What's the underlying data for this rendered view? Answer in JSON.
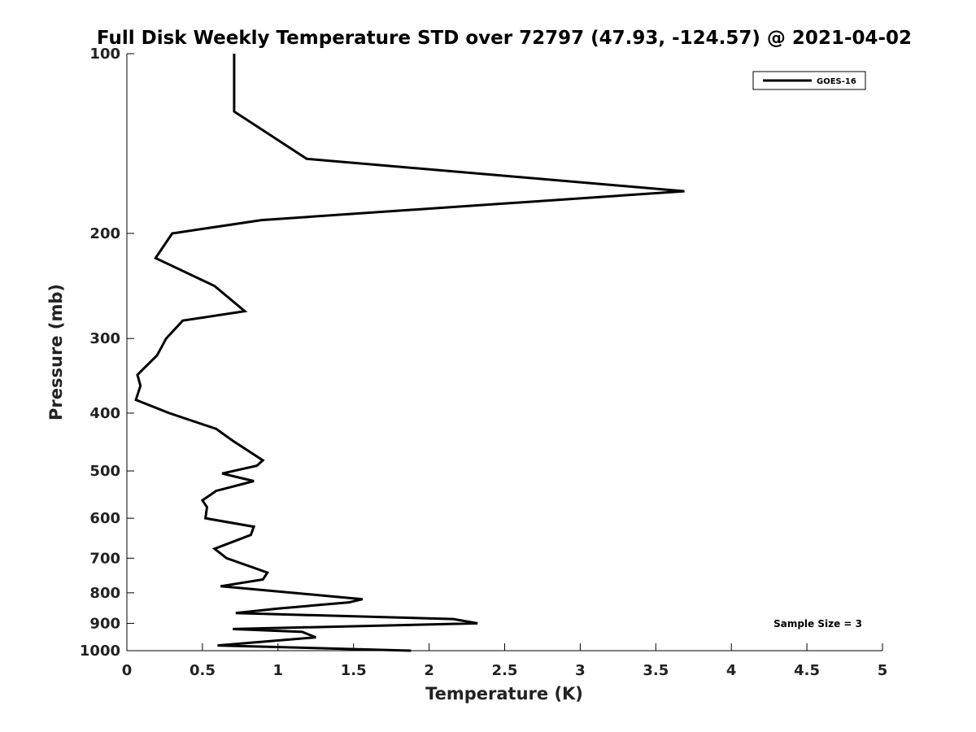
{
  "chart_data": {
    "type": "line",
    "title": "Full Disk Weekly Temperature STD over 72797 (47.93, -124.57) @ 2021-04-02",
    "xlabel": "Temperature (K)",
    "ylabel": "Pressure (mb)",
    "xlim": [
      0,
      5
    ],
    "ylim": [
      100,
      1000
    ],
    "y_scale": "log",
    "y_reversed": true,
    "x_ticks": [
      "0",
      "0.5",
      "1",
      "1.5",
      "2",
      "2.5",
      "3",
      "3.5",
      "4",
      "4.5",
      "5"
    ],
    "y_ticks": [
      "100",
      "200",
      "300",
      "400",
      "500",
      "600",
      "700",
      "800",
      "900",
      "1000"
    ],
    "grid": false,
    "legend_position": "top-right",
    "annotation": "Sample Size = 3",
    "series": [
      {
        "name": "GOES-16",
        "color": "#000000",
        "x": [
          0.71,
          0.71,
          1.19,
          3.69,
          0.89,
          0.3,
          0.19,
          0.58,
          0.78,
          0.37,
          0.26,
          0.2,
          0.07,
          0.09,
          0.06,
          0.28,
          0.59,
          0.7,
          0.9,
          0.86,
          0.63,
          0.84,
          0.59,
          0.5,
          0.53,
          0.52,
          0.84,
          0.82,
          0.58,
          0.66,
          0.93,
          0.9,
          0.62,
          1.56,
          1.47,
          1.0,
          0.72,
          2.16,
          2.32,
          0.7,
          1.16,
          1.25,
          0.6,
          1.88
        ],
        "y": [
          100,
          125,
          150,
          170,
          190,
          200,
          220,
          245,
          270,
          280,
          300,
          320,
          345,
          360,
          380,
          400,
          425,
          445,
          480,
          490,
          505,
          520,
          540,
          560,
          575,
          600,
          620,
          640,
          675,
          700,
          740,
          760,
          780,
          820,
          830,
          850,
          865,
          885,
          900,
          920,
          930,
          950,
          980,
          1000
        ]
      }
    ]
  }
}
